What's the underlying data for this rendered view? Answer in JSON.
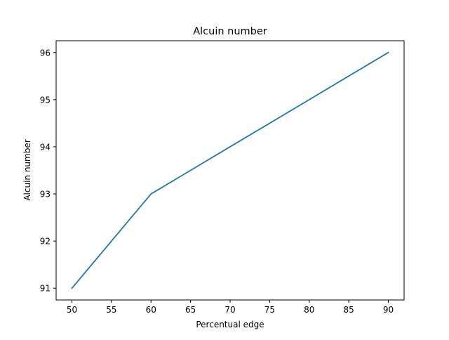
{
  "chart_data": {
    "type": "line",
    "title": "Alcuin number",
    "xlabel": "Percentual edge",
    "ylabel": "Alcuin number",
    "x": [
      50,
      60,
      70,
      80,
      90
    ],
    "series": [
      {
        "values": [
          91,
          93,
          94,
          95,
          96
        ],
        "color": "#1f77b4"
      }
    ],
    "xlim": [
      48,
      92
    ],
    "ylim": [
      90.75,
      96.25
    ],
    "xticks": [
      50,
      55,
      60,
      65,
      70,
      75,
      80,
      85,
      90
    ],
    "yticks": [
      91,
      92,
      93,
      94,
      95,
      96
    ],
    "grid": false,
    "legend": "none"
  }
}
